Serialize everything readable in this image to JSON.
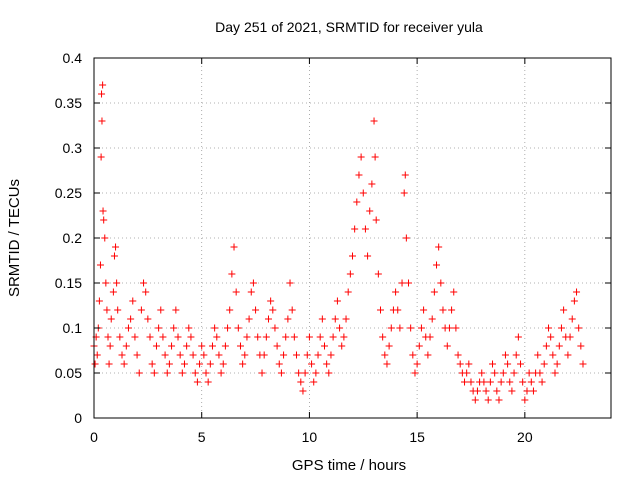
{
  "chart_data": {
    "type": "scatter",
    "title": "Day 251 of 2021, SRMTID for receiver yula",
    "xlabel": "GPS time / hours",
    "ylabel": "SRMTID / TECUs",
    "xlim": [
      0,
      24
    ],
    "ylim": [
      0,
      0.4
    ],
    "xticks": [
      0,
      5,
      10,
      15,
      20
    ],
    "yticks": [
      0,
      0.05,
      0.1,
      0.15,
      0.2,
      0.25,
      0.3,
      0.35,
      0.4
    ],
    "xtick_labels": [
      "0",
      "5",
      "10",
      "15",
      "20"
    ],
    "ytick_labels": [
      "0",
      "0.05",
      "0.1",
      "0.15",
      "0.2",
      "0.25",
      "0.3",
      "0.35",
      "0.4"
    ],
    "grid": true,
    "marker": "+",
    "color": "#ff0000",
    "series": [
      {
        "name": "SRMTID",
        "points": [
          [
            0.0,
            0.08
          ],
          [
            0.05,
            0.06
          ],
          [
            0.1,
            0.09
          ],
          [
            0.15,
            0.07
          ],
          [
            0.2,
            0.1
          ],
          [
            0.25,
            0.13
          ],
          [
            0.3,
            0.17
          ],
          [
            0.33,
            0.29
          ],
          [
            0.35,
            0.36
          ],
          [
            0.37,
            0.33
          ],
          [
            0.4,
            0.37
          ],
          [
            0.42,
            0.23
          ],
          [
            0.45,
            0.22
          ],
          [
            0.5,
            0.2
          ],
          [
            0.55,
            0.15
          ],
          [
            0.6,
            0.12
          ],
          [
            0.65,
            0.09
          ],
          [
            0.7,
            0.06
          ],
          [
            0.75,
            0.08
          ],
          [
            0.8,
            0.11
          ],
          [
            0.9,
            0.14
          ],
          [
            0.95,
            0.18
          ],
          [
            1.0,
            0.19
          ],
          [
            1.05,
            0.15
          ],
          [
            1.1,
            0.12
          ],
          [
            1.2,
            0.09
          ],
          [
            1.3,
            0.07
          ],
          [
            1.4,
            0.06
          ],
          [
            1.5,
            0.08
          ],
          [
            1.6,
            0.1
          ],
          [
            1.7,
            0.11
          ],
          [
            1.8,
            0.13
          ],
          [
            1.9,
            0.09
          ],
          [
            2.0,
            0.07
          ],
          [
            2.1,
            0.05
          ],
          [
            2.2,
            0.12
          ],
          [
            2.3,
            0.15
          ],
          [
            2.4,
            0.14
          ],
          [
            2.5,
            0.11
          ],
          [
            2.6,
            0.09
          ],
          [
            2.7,
            0.06
          ],
          [
            2.8,
            0.05
          ],
          [
            2.9,
            0.08
          ],
          [
            3.0,
            0.1
          ],
          [
            3.1,
            0.12
          ],
          [
            3.2,
            0.09
          ],
          [
            3.3,
            0.07
          ],
          [
            3.4,
            0.05
          ],
          [
            3.5,
            0.06
          ],
          [
            3.6,
            0.08
          ],
          [
            3.7,
            0.1
          ],
          [
            3.8,
            0.12
          ],
          [
            3.9,
            0.09
          ],
          [
            4.0,
            0.07
          ],
          [
            4.1,
            0.05
          ],
          [
            4.2,
            0.06
          ],
          [
            4.3,
            0.08
          ],
          [
            4.4,
            0.1
          ],
          [
            4.5,
            0.09
          ],
          [
            4.6,
            0.07
          ],
          [
            4.7,
            0.05
          ],
          [
            4.8,
            0.04
          ],
          [
            4.9,
            0.06
          ],
          [
            5.0,
            0.08
          ],
          [
            5.1,
            0.07
          ],
          [
            5.2,
            0.05
          ],
          [
            5.3,
            0.04
          ],
          [
            5.4,
            0.06
          ],
          [
            5.5,
            0.08
          ],
          [
            5.6,
            0.1
          ],
          [
            5.7,
            0.09
          ],
          [
            5.8,
            0.07
          ],
          [
            5.9,
            0.05
          ],
          [
            6.0,
            0.06
          ],
          [
            6.1,
            0.08
          ],
          [
            6.2,
            0.1
          ],
          [
            6.3,
            0.12
          ],
          [
            6.4,
            0.16
          ],
          [
            6.5,
            0.19
          ],
          [
            6.6,
            0.14
          ],
          [
            6.7,
            0.1
          ],
          [
            6.8,
            0.08
          ],
          [
            6.9,
            0.06
          ],
          [
            7.0,
            0.07
          ],
          [
            7.1,
            0.09
          ],
          [
            7.2,
            0.11
          ],
          [
            7.3,
            0.14
          ],
          [
            7.4,
            0.15
          ],
          [
            7.5,
            0.12
          ],
          [
            7.6,
            0.09
          ],
          [
            7.7,
            0.07
          ],
          [
            7.8,
            0.05
          ],
          [
            7.9,
            0.07
          ],
          [
            8.0,
            0.09
          ],
          [
            8.1,
            0.11
          ],
          [
            8.2,
            0.13
          ],
          [
            8.3,
            0.12
          ],
          [
            8.4,
            0.1
          ],
          [
            8.5,
            0.08
          ],
          [
            8.6,
            0.06
          ],
          [
            8.7,
            0.05
          ],
          [
            8.8,
            0.07
          ],
          [
            8.9,
            0.09
          ],
          [
            9.0,
            0.11
          ],
          [
            9.1,
            0.15
          ],
          [
            9.2,
            0.12
          ],
          [
            9.3,
            0.09
          ],
          [
            9.4,
            0.07
          ],
          [
            9.5,
            0.05
          ],
          [
            9.6,
            0.04
          ],
          [
            9.7,
            0.03
          ],
          [
            9.8,
            0.05
          ],
          [
            9.9,
            0.07
          ],
          [
            10.0,
            0.09
          ],
          [
            10.1,
            0.06
          ],
          [
            10.2,
            0.04
          ],
          [
            10.3,
            0.05
          ],
          [
            10.4,
            0.07
          ],
          [
            10.5,
            0.09
          ],
          [
            10.6,
            0.11
          ],
          [
            10.7,
            0.08
          ],
          [
            10.8,
            0.06
          ],
          [
            10.9,
            0.05
          ],
          [
            11.0,
            0.07
          ],
          [
            11.1,
            0.09
          ],
          [
            11.2,
            0.11
          ],
          [
            11.3,
            0.13
          ],
          [
            11.4,
            0.1
          ],
          [
            11.5,
            0.08
          ],
          [
            11.6,
            0.09
          ],
          [
            11.7,
            0.11
          ],
          [
            11.8,
            0.14
          ],
          [
            11.9,
            0.16
          ],
          [
            12.0,
            0.18
          ],
          [
            12.1,
            0.21
          ],
          [
            12.2,
            0.24
          ],
          [
            12.3,
            0.27
          ],
          [
            12.4,
            0.29
          ],
          [
            12.5,
            0.25
          ],
          [
            12.6,
            0.21
          ],
          [
            12.7,
            0.18
          ],
          [
            12.8,
            0.23
          ],
          [
            12.9,
            0.26
          ],
          [
            13.0,
            0.33
          ],
          [
            13.05,
            0.29
          ],
          [
            13.1,
            0.22
          ],
          [
            13.2,
            0.16
          ],
          [
            13.3,
            0.12
          ],
          [
            13.4,
            0.09
          ],
          [
            13.5,
            0.07
          ],
          [
            13.6,
            0.06
          ],
          [
            13.7,
            0.08
          ],
          [
            13.8,
            0.1
          ],
          [
            13.9,
            0.12
          ],
          [
            14.0,
            0.14
          ],
          [
            14.1,
            0.12
          ],
          [
            14.2,
            0.1
          ],
          [
            14.3,
            0.15
          ],
          [
            14.4,
            0.25
          ],
          [
            14.45,
            0.27
          ],
          [
            14.5,
            0.2
          ],
          [
            14.6,
            0.15
          ],
          [
            14.7,
            0.1
          ],
          [
            14.8,
            0.07
          ],
          [
            14.9,
            0.05
          ],
          [
            15.0,
            0.06
          ],
          [
            15.1,
            0.08
          ],
          [
            15.2,
            0.1
          ],
          [
            15.3,
            0.12
          ],
          [
            15.4,
            0.09
          ],
          [
            15.5,
            0.07
          ],
          [
            15.6,
            0.09
          ],
          [
            15.7,
            0.11
          ],
          [
            15.8,
            0.14
          ],
          [
            15.9,
            0.17
          ],
          [
            16.0,
            0.19
          ],
          [
            16.1,
            0.15
          ],
          [
            16.2,
            0.12
          ],
          [
            16.3,
            0.1
          ],
          [
            16.4,
            0.08
          ],
          [
            16.5,
            0.1
          ],
          [
            16.6,
            0.12
          ],
          [
            16.7,
            0.14
          ],
          [
            16.8,
            0.1
          ],
          [
            16.9,
            0.07
          ],
          [
            17.0,
            0.06
          ],
          [
            17.1,
            0.05
          ],
          [
            17.2,
            0.04
          ],
          [
            17.3,
            0.05
          ],
          [
            17.4,
            0.06
          ],
          [
            17.5,
            0.04
          ],
          [
            17.6,
            0.03
          ],
          [
            17.7,
            0.02
          ],
          [
            17.8,
            0.03
          ],
          [
            17.9,
            0.04
          ],
          [
            18.0,
            0.05
          ],
          [
            18.1,
            0.04
          ],
          [
            18.2,
            0.03
          ],
          [
            18.3,
            0.02
          ],
          [
            18.4,
            0.04
          ],
          [
            18.5,
            0.06
          ],
          [
            18.6,
            0.05
          ],
          [
            18.7,
            0.03
          ],
          [
            18.8,
            0.02
          ],
          [
            18.9,
            0.04
          ],
          [
            19.0,
            0.05
          ],
          [
            19.1,
            0.07
          ],
          [
            19.2,
            0.06
          ],
          [
            19.3,
            0.04
          ],
          [
            19.4,
            0.03
          ],
          [
            19.5,
            0.05
          ],
          [
            19.6,
            0.07
          ],
          [
            19.7,
            0.09
          ],
          [
            19.8,
            0.06
          ],
          [
            19.9,
            0.04
          ],
          [
            20.0,
            0.02
          ],
          [
            20.1,
            0.03
          ],
          [
            20.2,
            0.05
          ],
          [
            20.3,
            0.04
          ],
          [
            20.4,
            0.03
          ],
          [
            20.5,
            0.05
          ],
          [
            20.6,
            0.07
          ],
          [
            20.7,
            0.05
          ],
          [
            20.8,
            0.04
          ],
          [
            20.9,
            0.06
          ],
          [
            21.0,
            0.08
          ],
          [
            21.1,
            0.1
          ],
          [
            21.2,
            0.09
          ],
          [
            21.3,
            0.07
          ],
          [
            21.4,
            0.05
          ],
          [
            21.5,
            0.06
          ],
          [
            21.6,
            0.08
          ],
          [
            21.7,
            0.1
          ],
          [
            21.8,
            0.12
          ],
          [
            21.9,
            0.09
          ],
          [
            22.0,
            0.07
          ],
          [
            22.1,
            0.09
          ],
          [
            22.2,
            0.11
          ],
          [
            22.3,
            0.13
          ],
          [
            22.4,
            0.14
          ],
          [
            22.5,
            0.1
          ],
          [
            22.6,
            0.08
          ],
          [
            22.7,
            0.06
          ]
        ]
      }
    ]
  }
}
